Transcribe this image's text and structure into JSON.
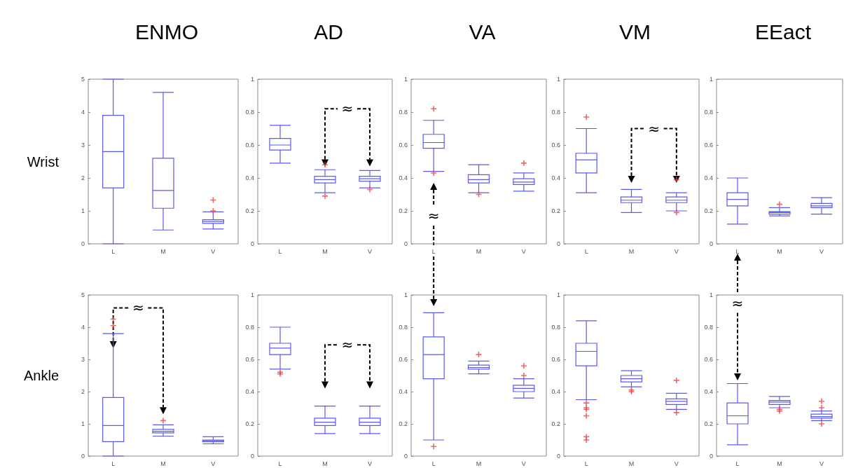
{
  "chart_data": [
    {
      "type": "box",
      "title": "ENMO",
      "ylabel": "Wrist",
      "categories": [
        "L",
        "M",
        "V"
      ],
      "ylim": [
        0,
        5
      ],
      "yticks": [
        0,
        1,
        2,
        3,
        4,
        5
      ],
      "marker": "cross",
      "series": [
        {
          "color": "#5a5af0",
          "boxes": [
            {
              "low": 0,
              "q1": 1.7,
              "median": 2.8,
              "q3": 3.9,
              "high": 5
            },
            {
              "low": 0.42,
              "q1": 1.08,
              "median": 1.62,
              "q3": 2.6,
              "high": 4.6
            },
            {
              "low": 0.45,
              "q1": 0.62,
              "median": 0.68,
              "q3": 0.73,
              "high": 0.97,
              "outliers": [
                1.0,
                1.33
              ]
            }
          ]
        }
      ]
    },
    {
      "type": "box",
      "title": "AD",
      "categories": [
        "L",
        "M",
        "V"
      ],
      "ylim": [
        0,
        1
      ],
      "yticks": [
        0,
        0.2,
        0.4,
        0.6,
        0.8,
        1
      ],
      "marker": "cross",
      "annotations": [
        "≈"
      ],
      "series": [
        {
          "color": "#5a5af0",
          "boxes": [
            {
              "low": 0.49,
              "q1": 0.57,
              "median": 0.6,
              "q3": 0.64,
              "high": 0.72
            },
            {
              "low": 0.31,
              "q1": 0.37,
              "median": 0.39,
              "q3": 0.41,
              "high": 0.45,
              "outliers": [
                0.48,
                0.29
              ]
            },
            {
              "low": 0.34,
              "q1": 0.38,
              "median": 0.395,
              "q3": 0.41,
              "high": 0.445,
              "outliers": [
                0.33
              ]
            }
          ]
        }
      ]
    },
    {
      "type": "box",
      "title": "VA",
      "categories": [
        "L",
        "M",
        "V"
      ],
      "ylim": [
        0,
        1
      ],
      "yticks": [
        0,
        0.2,
        0.4,
        0.6,
        0.8,
        1
      ],
      "marker": "cross",
      "annotations": [
        "≈"
      ],
      "series": [
        {
          "color": "#5a5af0",
          "boxes": [
            {
              "low": 0.44,
              "q1": 0.58,
              "median": 0.615,
              "q3": 0.665,
              "high": 0.75,
              "outliers": [
                0.82,
                0.43
              ]
            },
            {
              "low": 0.31,
              "q1": 0.37,
              "median": 0.39,
              "q3": 0.42,
              "high": 0.48,
              "outliers": [
                0.3
              ]
            },
            {
              "low": 0.32,
              "q1": 0.36,
              "median": 0.375,
              "q3": 0.395,
              "high": 0.43,
              "outliers": [
                0.49
              ]
            }
          ]
        }
      ]
    },
    {
      "type": "box",
      "title": "VM",
      "categories": [
        "L",
        "M",
        "V"
      ],
      "ylim": [
        0,
        1
      ],
      "yticks": [
        0,
        0.2,
        0.4,
        0.6,
        0.8,
        1
      ],
      "marker": "cross",
      "annotations": [
        "≈"
      ],
      "series": [
        {
          "color": "#5a5af0",
          "boxes": [
            {
              "low": 0.31,
              "q1": 0.43,
              "median": 0.51,
              "q3": 0.55,
              "high": 0.7,
              "outliers": [
                0.77
              ]
            },
            {
              "low": 0.19,
              "q1": 0.25,
              "median": 0.265,
              "q3": 0.285,
              "high": 0.33
            },
            {
              "low": 0.2,
              "q1": 0.25,
              "median": 0.265,
              "q3": 0.285,
              "high": 0.31,
              "outliers": [
                0.39,
                0.19
              ]
            }
          ]
        }
      ]
    },
    {
      "type": "box",
      "title": "EEact",
      "categories": [
        "L",
        "M",
        "V"
      ],
      "ylim": [
        0,
        1
      ],
      "yticks": [
        0,
        0.2,
        0.4,
        0.6,
        0.8,
        1
      ],
      "marker": "cross",
      "series": [
        {
          "color": "#5a5af0",
          "boxes": [
            {
              "low": 0.12,
              "q1": 0.23,
              "median": 0.27,
              "q3": 0.31,
              "high": 0.4
            },
            {
              "low": 0.17,
              "q1": 0.18,
              "median": 0.19,
              "q3": 0.195,
              "high": 0.22,
              "outliers": [
                0.24
              ]
            },
            {
              "low": 0.18,
              "q1": 0.22,
              "median": 0.23,
              "q3": 0.245,
              "high": 0.28
            }
          ]
        }
      ]
    },
    {
      "type": "box",
      "ylabel": "Ankle",
      "categories": [
        "L",
        "M",
        "V"
      ],
      "ylim": [
        0,
        5
      ],
      "yticks": [
        0,
        1,
        2,
        3,
        4,
        5
      ],
      "marker": "cross",
      "annotations": [
        {
          "text": "≈",
          "x": "L",
          "y": 3.35
        }
      ],
      "series": [
        {
          "color": "#5a5af0",
          "boxes": [
            {
              "low": 0,
              "q1": 0.45,
              "median": 0.95,
              "q3": 1.82,
              "high": 3.8,
              "outliers": [
                4.05,
                4.25
              ]
            },
            {
              "low": 0.62,
              "q1": 0.72,
              "median": 0.77,
              "q3": 0.83,
              "high": 0.97,
              "outliers": [
                1.1
              ]
            },
            {
              "low": 0.38,
              "q1": 0.44,
              "median": 0.47,
              "q3": 0.5,
              "high": 0.6
            }
          ]
        }
      ]
    },
    {
      "type": "box",
      "categories": [
        "L",
        "M",
        "V"
      ],
      "ylim": [
        0,
        1
      ],
      "yticks": [
        0,
        0.2,
        0.4,
        0.6,
        0.8,
        1
      ],
      "marker": "cross",
      "annotations": [
        "≈"
      ],
      "series": [
        {
          "color": "#5a5af0",
          "boxes": [
            {
              "low": 0.54,
              "q1": 0.63,
              "median": 0.67,
              "q3": 0.7,
              "high": 0.8,
              "outliers": [
                0.52,
                0.51
              ]
            },
            {
              "low": 0.14,
              "q1": 0.19,
              "median": 0.21,
              "q3": 0.235,
              "high": 0.31
            },
            {
              "low": 0.14,
              "q1": 0.19,
              "median": 0.21,
              "q3": 0.235,
              "high": 0.31
            }
          ]
        }
      ]
    },
    {
      "type": "box",
      "categories": [
        "L",
        "M",
        "V"
      ],
      "ylim": [
        0,
        1
      ],
      "yticks": [
        0,
        0.2,
        0.4,
        0.6,
        0.8,
        1
      ],
      "marker": "cross",
      "series": [
        {
          "color": "#5a5af0",
          "boxes": [
            {
              "low": 0.1,
              "q1": 0.48,
              "median": 0.63,
              "q3": 0.74,
              "high": 0.89,
              "outliers": [
                0.06
              ]
            },
            {
              "low": 0.51,
              "q1": 0.54,
              "median": 0.55,
              "q3": 0.565,
              "high": 0.59,
              "outliers": [
                0.63
              ]
            },
            {
              "low": 0.36,
              "q1": 0.4,
              "median": 0.42,
              "q3": 0.44,
              "high": 0.48,
              "outliers": [
                0.5,
                0.56
              ]
            }
          ]
        }
      ]
    },
    {
      "type": "box",
      "categories": [
        "L",
        "M",
        "V"
      ],
      "ylim": [
        0,
        1
      ],
      "yticks": [
        0,
        0.2,
        0.4,
        0.6,
        0.8,
        1
      ],
      "marker": "cross",
      "series": [
        {
          "color": "#5a5af0",
          "boxes": [
            {
              "low": 0.35,
              "q1": 0.56,
              "median": 0.65,
              "q3": 0.7,
              "high": 0.84,
              "outliers": [
                0.33,
                0.3,
                0.29,
                0.25,
                0.12,
                0.1
              ]
            },
            {
              "low": 0.43,
              "q1": 0.46,
              "median": 0.48,
              "q3": 0.5,
              "high": 0.53,
              "outliers": [
                0.41,
                0.4
              ]
            },
            {
              "low": 0.29,
              "q1": 0.32,
              "median": 0.34,
              "q3": 0.355,
              "high": 0.39,
              "outliers": [
                0.47,
                0.27
              ]
            }
          ]
        }
      ]
    },
    {
      "type": "box",
      "categories": [
        "L",
        "M",
        "V"
      ],
      "ylim": [
        0,
        1
      ],
      "yticks": [
        0,
        0.2,
        0.4,
        0.6,
        0.8,
        1
      ],
      "marker": "cross",
      "annotations": [
        "≈"
      ],
      "series": [
        {
          "color": "#5a5af0",
          "boxes": [
            {
              "low": 0.07,
              "q1": 0.2,
              "median": 0.25,
              "q3": 0.33,
              "high": 0.45
            },
            {
              "low": 0.3,
              "q1": 0.32,
              "median": 0.335,
              "q3": 0.345,
              "high": 0.37,
              "outliers": [
                0.29,
                0.28
              ]
            },
            {
              "low": 0.22,
              "q1": 0.235,
              "median": 0.245,
              "q3": 0.26,
              "high": 0.28,
              "outliers": [
                0.34,
                0.3,
                0.2
              ]
            }
          ]
        }
      ]
    }
  ]
}
